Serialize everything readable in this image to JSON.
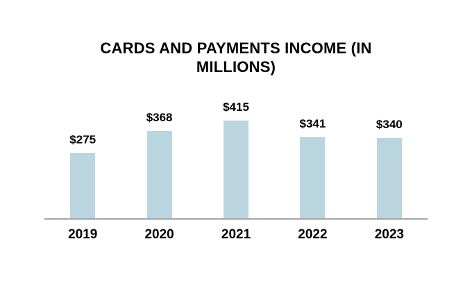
{
  "colors": {
    "bar": "#BAD4E0",
    "axis": "#A6A6A6",
    "text": "#000000",
    "background": "#FFFFFF"
  },
  "chart_data": {
    "type": "bar",
    "title": "CARDS AND PAYMENTS INCOME (IN MILLIONS)",
    "categories": [
      "2019",
      "2020",
      "2021",
      "2022",
      "2023"
    ],
    "values": [
      275,
      368,
      415,
      341,
      340
    ],
    "data_labels": [
      "$275",
      "$368",
      "$415",
      "$341",
      "$340"
    ],
    "xlabel": "",
    "ylabel": "",
    "ylim": [
      0,
      415
    ],
    "grid": false,
    "legend": false
  }
}
